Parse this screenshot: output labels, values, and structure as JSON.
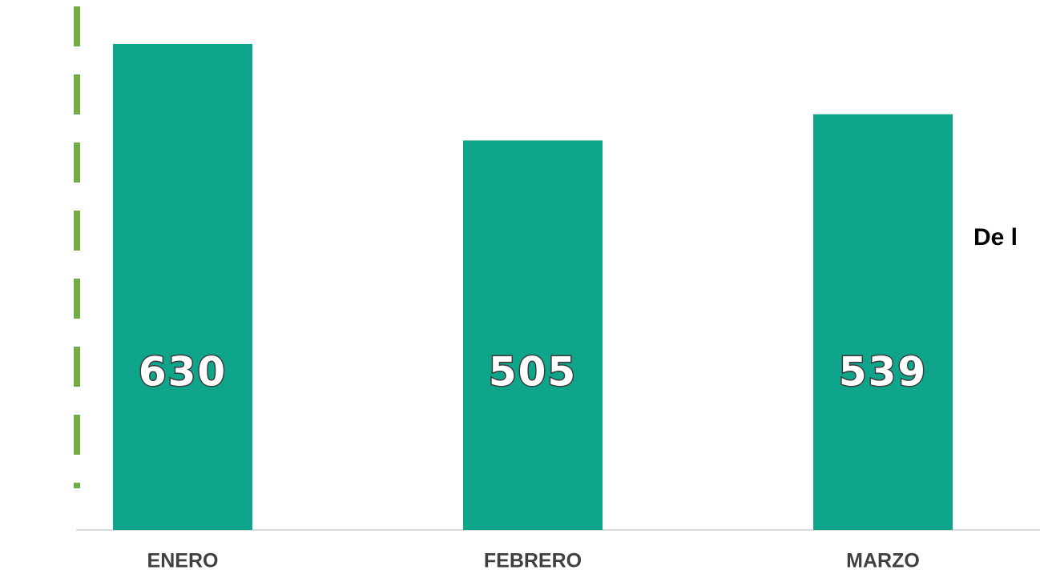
{
  "chart_data": {
    "type": "bar",
    "categories": [
      "ENERO",
      "FEBRERO",
      "MARZO"
    ],
    "values": [
      630,
      505,
      539
    ],
    "color": "#0ea58b",
    "annotation": "De l"
  }
}
